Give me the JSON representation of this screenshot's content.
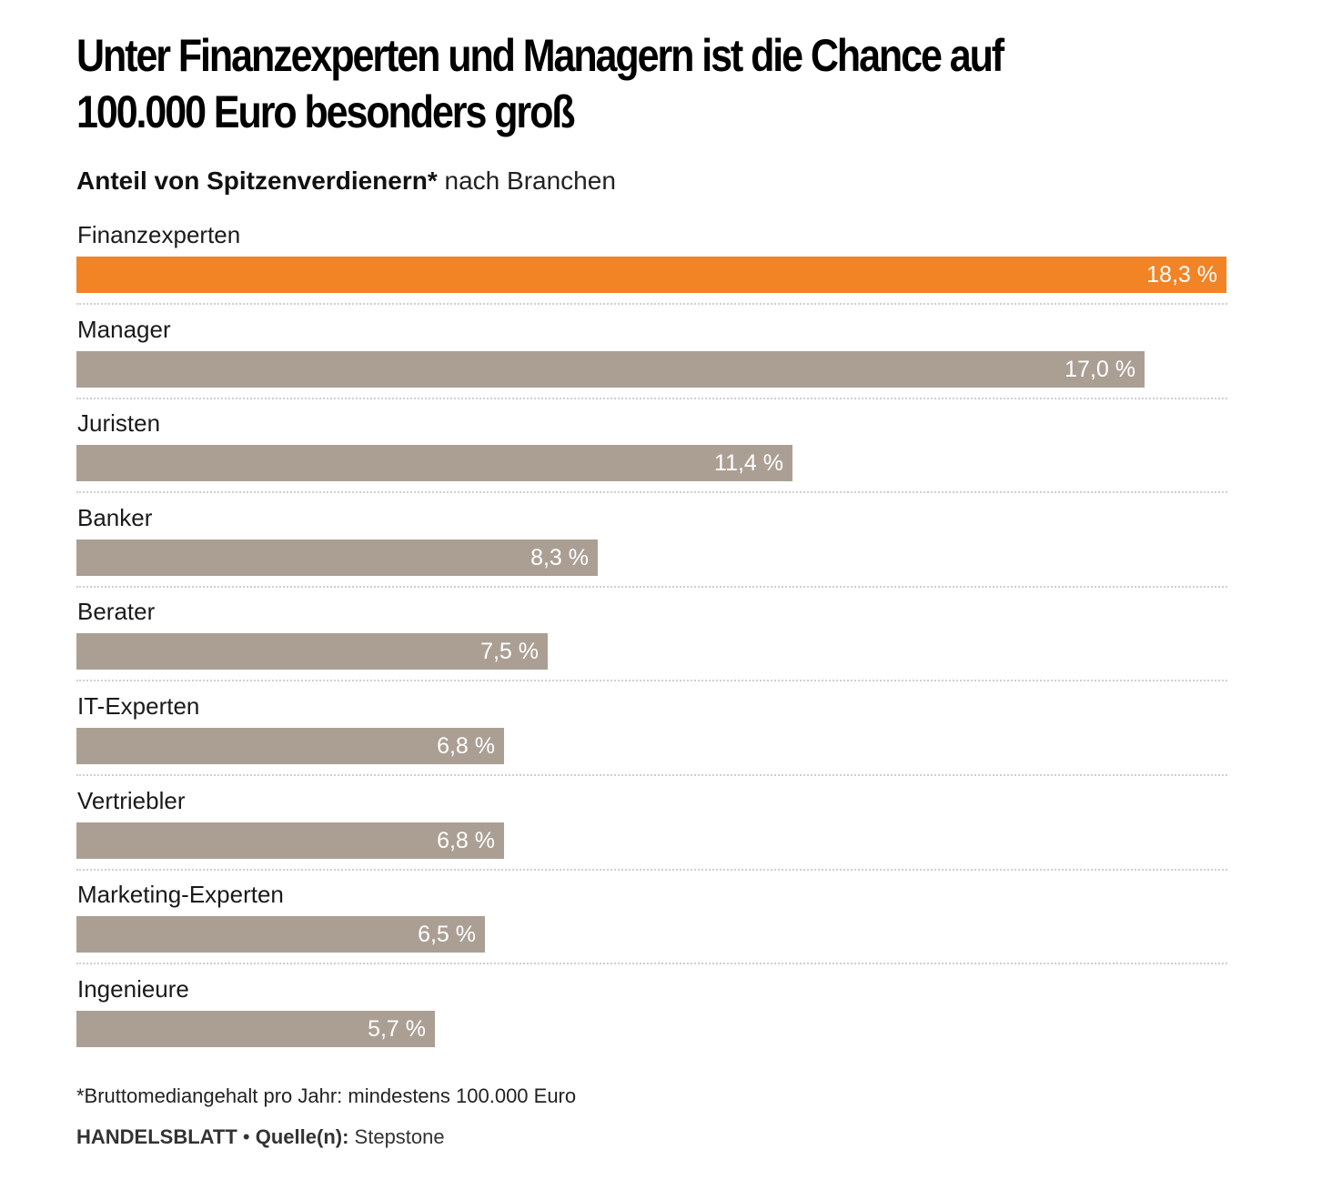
{
  "chart_data": {
    "type": "bar",
    "orientation": "horizontal",
    "title": "Unter Finanzexperten und Managern ist die Chance auf 100.000 Euro besonders groß",
    "subtitle_bold": "Anteil von Spitzenverdienern*",
    "subtitle_rest": "nach Branchen",
    "categories": [
      "Finanzexperten",
      "Manager",
      "Juristen",
      "Banker",
      "Berater",
      "IT-Experten",
      "Vertriebler",
      "Marketing-Experten",
      "Ingenieure"
    ],
    "values": [
      18.3,
      17.0,
      11.4,
      8.3,
      7.5,
      6.8,
      6.8,
      6.5,
      5.7
    ],
    "value_labels": [
      "18,3 %",
      "17,0 %",
      "11,4 %",
      "8,3 %",
      "7,5 %",
      "6,8 %",
      "6,8 %",
      "6,5 %",
      "5,7 %"
    ],
    "xlim": [
      0,
      18.3
    ],
    "highlight_index": 0,
    "colors": {
      "highlight": "#f28426",
      "default": "#ab9f94",
      "value_text": "#ffffff"
    },
    "grid": false,
    "legend": "none"
  },
  "footnote": "*Bruttomediangehalt pro Jahr: mindestens 100.000 Euro",
  "source": {
    "brand": "HANDELSBLATT",
    "separator": "•",
    "label": "Quelle(n):",
    "name": "Stepstone"
  }
}
